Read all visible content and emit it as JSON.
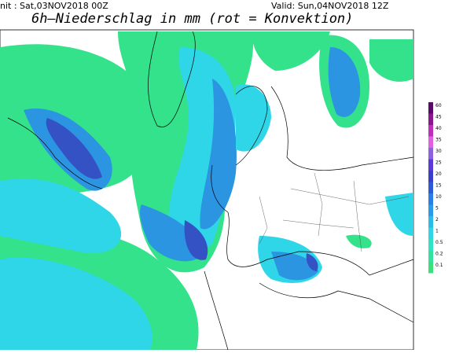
{
  "header": {
    "init": "nit : Sat,03NOV2018 00Z",
    "valid": "Valid: Sun,04NOV2018 12Z",
    "title": "6h–Niederschlag in mm (rot = Konvektion)"
  },
  "legend": {
    "labels": [
      "60",
      "45",
      "40",
      "35",
      "30",
      "25",
      "20",
      "15",
      "10",
      "5",
      "2",
      "1",
      "0.5",
      "0.2",
      "0.1"
    ]
  }
}
